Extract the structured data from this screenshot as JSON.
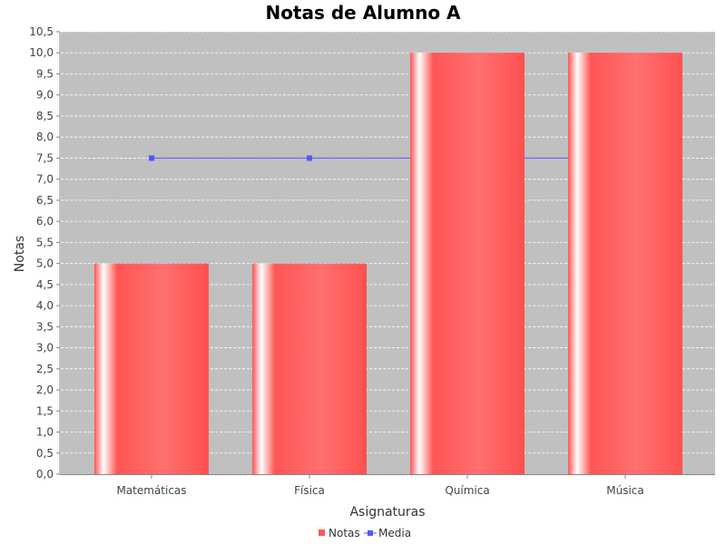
{
  "chart_data": {
    "type": "bar",
    "title": "Notas de Alumno A",
    "xlabel": "Asignaturas",
    "ylabel": "Notas",
    "categories": [
      "Matemáticas",
      "Física",
      "Química",
      "Música"
    ],
    "series": [
      {
        "name": "Notas",
        "kind": "bar",
        "values": [
          5.0,
          5.0,
          10.0,
          10.0
        ]
      },
      {
        "name": "Media",
        "kind": "line",
        "values": [
          7.5,
          7.5,
          7.5,
          7.5
        ]
      }
    ],
    "ylim": [
      0,
      10.5
    ],
    "yticks": [
      "0,0",
      "0,5",
      "1,0",
      "1,5",
      "2,0",
      "2,5",
      "3,0",
      "3,5",
      "4,0",
      "4,5",
      "5,0",
      "5,5",
      "6,0",
      "6,5",
      "7,0",
      "7,5",
      "8,0",
      "8,5",
      "9,0",
      "9,5",
      "10,0",
      "10,5"
    ],
    "grid": true,
    "legend_position": "bottom-center",
    "colors": {
      "bar": "#ff5555",
      "bar_highlight": "#ffffff",
      "line": "#5555ff",
      "plot_background": "#c0c0c0",
      "gridline": "#ffffff"
    }
  }
}
